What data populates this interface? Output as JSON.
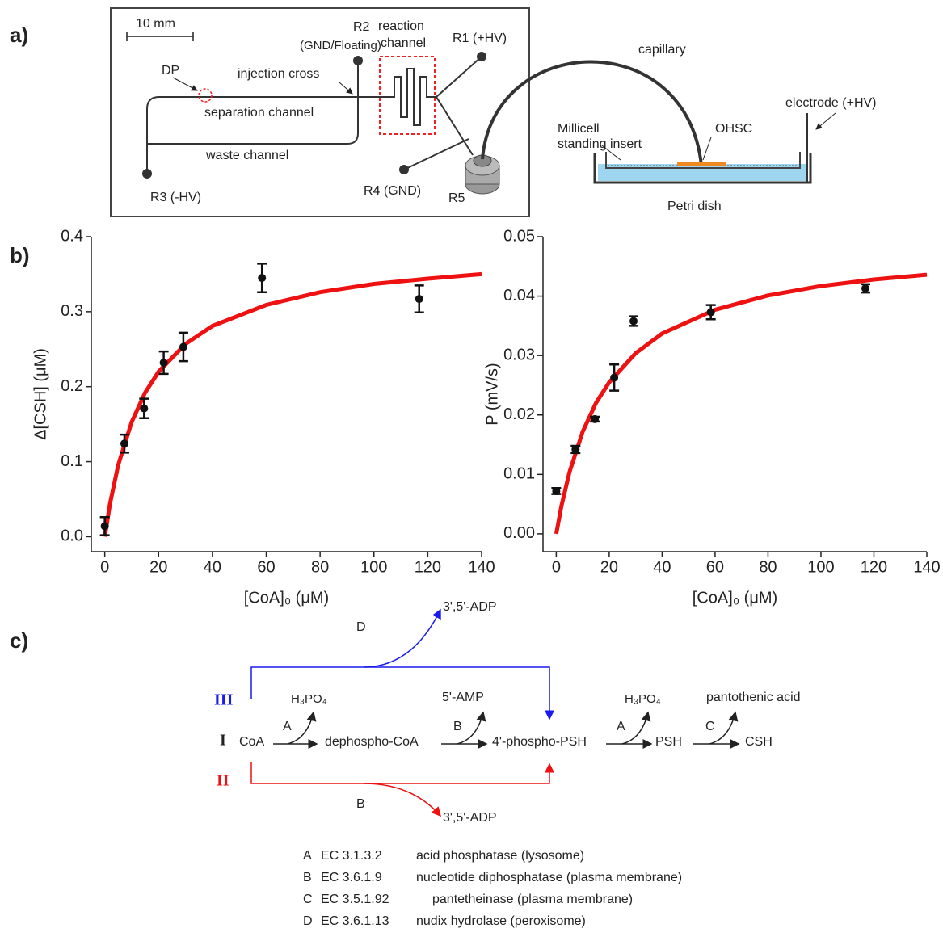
{
  "panel_a": {
    "label": "a)",
    "scale_bar": "10 mm",
    "r2": "R2",
    "r2_note": "(GND/Floating)",
    "reaction_channel": [
      "reaction",
      "channel"
    ],
    "r1": "R1 (+HV)",
    "dp": "DP",
    "injection_cross": "injection cross",
    "separation_channel": "separation channel",
    "waste_channel": "waste channel",
    "r3": "R3 (-HV)",
    "r4": "R4 (GND)",
    "r5": "R5",
    "capillary": "capillary",
    "millicell": [
      "Millicell",
      "standing insert"
    ],
    "ohsc": "OHSC",
    "electrode": "electrode (+HV)",
    "petri_dish": "Petri dish"
  },
  "panel_b": {
    "label": "b)"
  },
  "chart_data": [
    {
      "type": "scatter",
      "xlabel": "[CoA]₀ (μM)",
      "ylabel": "Δ[CSH] (μM)",
      "color": "#111111",
      "x": [
        0,
        7.3,
        14.6,
        21.9,
        29.2,
        58.4,
        116.8
      ],
      "values": [
        0.014,
        0.124,
        0.171,
        0.232,
        0.253,
        0.345,
        0.317
      ],
      "errors": [
        0.012,
        0.012,
        0.013,
        0.015,
        0.019,
        0.019,
        0.018
      ],
      "fit": {
        "color": "#ee1111",
        "x": [
          0,
          2,
          5,
          10,
          15,
          20,
          30,
          40,
          60,
          80,
          100,
          120,
          140
        ],
        "values": [
          0,
          0.0449,
          0.0956,
          0.153,
          0.192,
          0.22,
          0.257,
          0.281,
          0.309,
          0.326,
          0.337,
          0.344,
          0.35
        ]
      },
      "xlim": [
        -5,
        140
      ],
      "ylim": [
        -0.02,
        0.4
      ],
      "xticks": [
        0,
        20,
        40,
        60,
        80,
        100,
        120,
        140
      ],
      "yticks": [
        {
          "value": 0,
          "label": "0.0"
        },
        0.1,
        0.2,
        0.3,
        0.4
      ]
    },
    {
      "type": "scatter",
      "xlabel": "[CoA]₀ (μM)",
      "ylabel": "P (mV/s)",
      "color": "#111111",
      "x": [
        0,
        7.3,
        14.6,
        21.9,
        29.2,
        58.4,
        116.8
      ],
      "values": [
        0.0072,
        0.0142,
        0.0193,
        0.0263,
        0.0358,
        0.0373,
        0.0413
      ],
      "errors": [
        0.0005,
        0.0006,
        0.0004,
        0.0022,
        0.0008,
        0.0012,
        0.0007
      ],
      "fit": {
        "color": "#ee1111",
        "x": [
          0,
          2,
          5,
          10,
          15,
          20,
          30,
          40,
          60,
          80,
          100,
          120,
          140
        ],
        "values": [
          0,
          0.00476,
          0.0104,
          0.0172,
          0.022,
          0.0255,
          0.0304,
          0.0337,
          0.0377,
          0.0401,
          0.0417,
          0.0428,
          0.0436
        ]
      },
      "xlim": [
        -5,
        140
      ],
      "ylim": [
        -0.003,
        0.05
      ],
      "xticks": [
        0,
        20,
        40,
        60,
        80,
        100,
        120,
        140
      ],
      "yticks": [
        {
          "value": 0,
          "label": "0.00"
        },
        0.01,
        0.02,
        0.03,
        0.04,
        0.05
      ]
    }
  ],
  "panel_c": {
    "label": "c)",
    "pathway_III": {
      "label": "III",
      "enzyme": "D",
      "product": "3',5'-ADP"
    },
    "pathway_I": {
      "label": "I",
      "nodes": [
        "CoA",
        "dephospho-CoA",
        "4'-phospho-PSH",
        "PSH",
        "CSH"
      ],
      "enzymes": [
        "A",
        "B",
        "A",
        "C"
      ],
      "byproducts": [
        "H₃PO₄",
        "5'-AMP",
        "H₃PO₄",
        "pantothenic acid"
      ]
    },
    "pathway_II": {
      "label": "II",
      "enzyme": "B",
      "product": "3',5'-ADP"
    },
    "enzymes": [
      [
        "A",
        "EC 3.1.3.2",
        "acid phosphatase (lysosome)"
      ],
      [
        "B",
        "EC 3.6.1.9",
        "nucleotide diphosphatase (plasma membrane)"
      ],
      [
        "C",
        "EC 3.5.1.92",
        "pantetheinase (plasma membrane)"
      ],
      [
        "D",
        "EC 3.6.1.13",
        "nudix hydrolase (peroxisome)"
      ]
    ]
  }
}
